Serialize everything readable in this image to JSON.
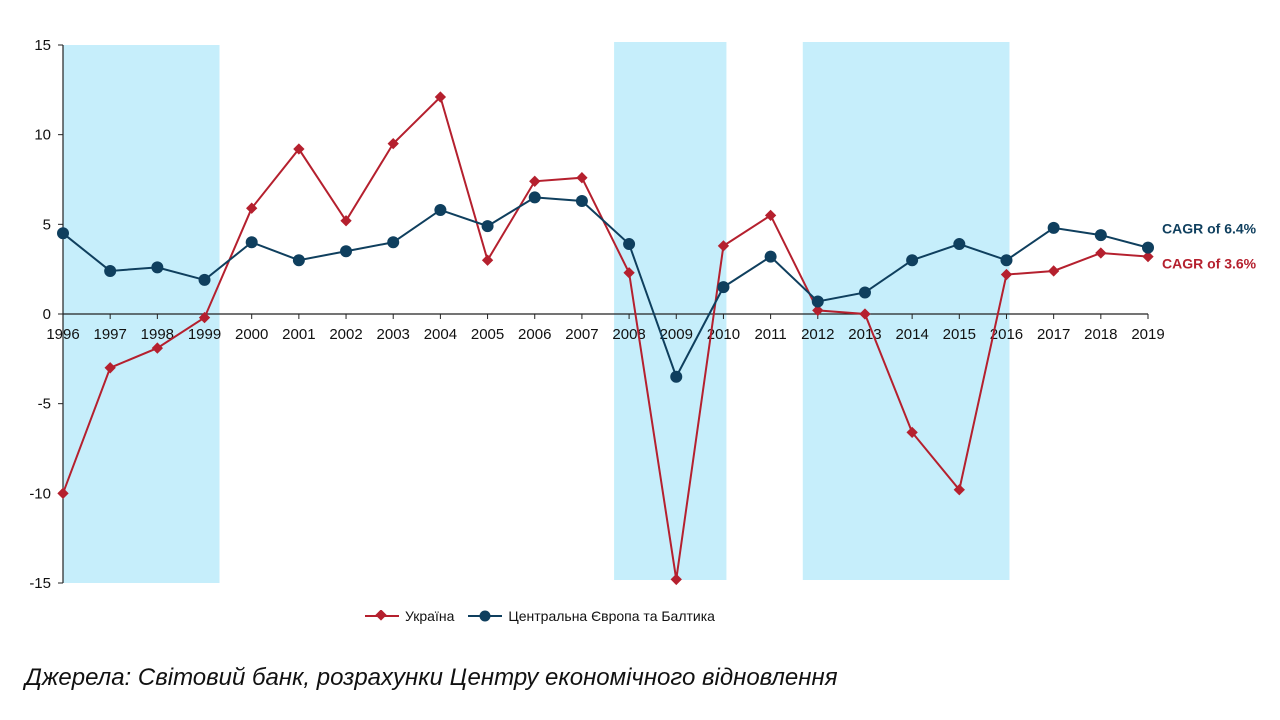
{
  "chart_data": {
    "type": "line",
    "x": [
      "1996",
      "1997",
      "1998",
      "1999",
      "2000",
      "2001",
      "2002",
      "2003",
      "2004",
      "2005",
      "2006",
      "2007",
      "2008",
      "2009",
      "2010",
      "2011",
      "2012",
      "2013",
      "2014",
      "2015",
      "2016",
      "2017",
      "2018",
      "2019"
    ],
    "series": [
      {
        "name": "Україна",
        "color": "#b5202e",
        "marker": "diamond",
        "values": [
          -10.0,
          -3.0,
          -1.9,
          -0.2,
          5.9,
          9.2,
          5.2,
          9.5,
          12.1,
          3.0,
          7.4,
          7.6,
          2.3,
          -14.8,
          3.8,
          5.5,
          0.2,
          0.0,
          -6.6,
          -9.8,
          2.2,
          2.4,
          3.4,
          3.2
        ]
      },
      {
        "name": "Центральна Європа та Балтика",
        "color": "#0f3f5e",
        "marker": "circle",
        "values": [
          4.5,
          2.4,
          2.6,
          1.9,
          4.0,
          3.0,
          3.5,
          4.0,
          5.8,
          4.9,
          6.5,
          6.3,
          3.9,
          -3.5,
          1.5,
          3.2,
          0.7,
          1.2,
          3.0,
          3.9,
          3.0,
          4.8,
          4.4,
          3.7
        ]
      }
    ],
    "ylim": [
      -15,
      15
    ],
    "yticks": [
      "15",
      "10",
      "5",
      "0",
      "-5",
      "-10",
      "-15"
    ],
    "shaded_periods": [
      [
        "1996",
        "1999"
      ],
      [
        "2008",
        "2010"
      ],
      [
        "2012",
        "2016"
      ]
    ],
    "shade_color": "#c6eefb",
    "annotations": [
      {
        "text": "CAGR of 6.4%",
        "color": "#0f3f5e",
        "series": "Центральна Європа та Балтика"
      },
      {
        "text": "CAGR of 3.6%",
        "color": "#b5202e",
        "series": "Україна"
      }
    ],
    "legend_position": "bottom-center",
    "grid": false
  },
  "source_text": "Джерела: Світовий банк, розрахунки Центру економічного відновлення"
}
